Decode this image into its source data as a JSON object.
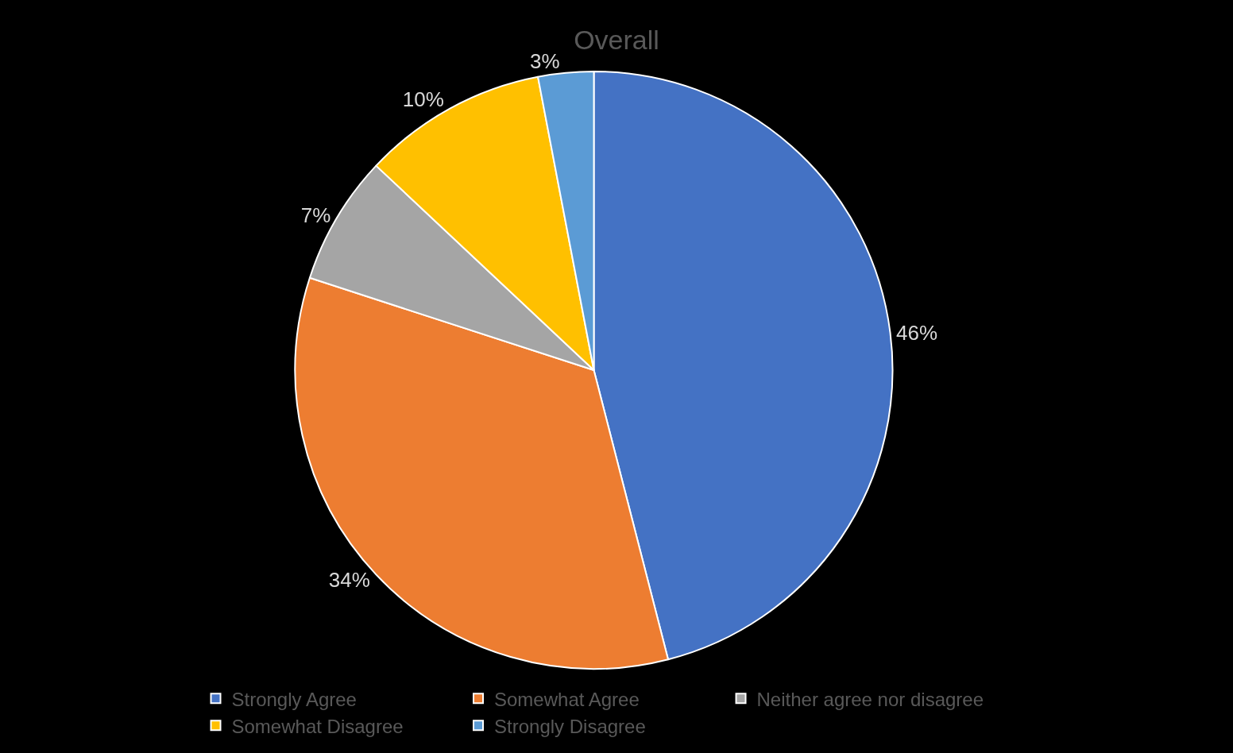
{
  "chart_data": {
    "type": "pie",
    "title": "Overall",
    "categories": [
      "Strongly Agree",
      "Somewhat Agree",
      "Neither agree nor disagree",
      "Somewhat Disagree",
      "Strongly Disagree"
    ],
    "values": [
      46,
      34,
      7,
      10,
      3
    ],
    "colors": [
      "#4472c4",
      "#ed7d31",
      "#a5a5a5",
      "#ffc000",
      "#5b9bd5"
    ],
    "value_labels": [
      "46%",
      "34%",
      "7%",
      "10%",
      "3%"
    ],
    "legend": "bottom"
  }
}
